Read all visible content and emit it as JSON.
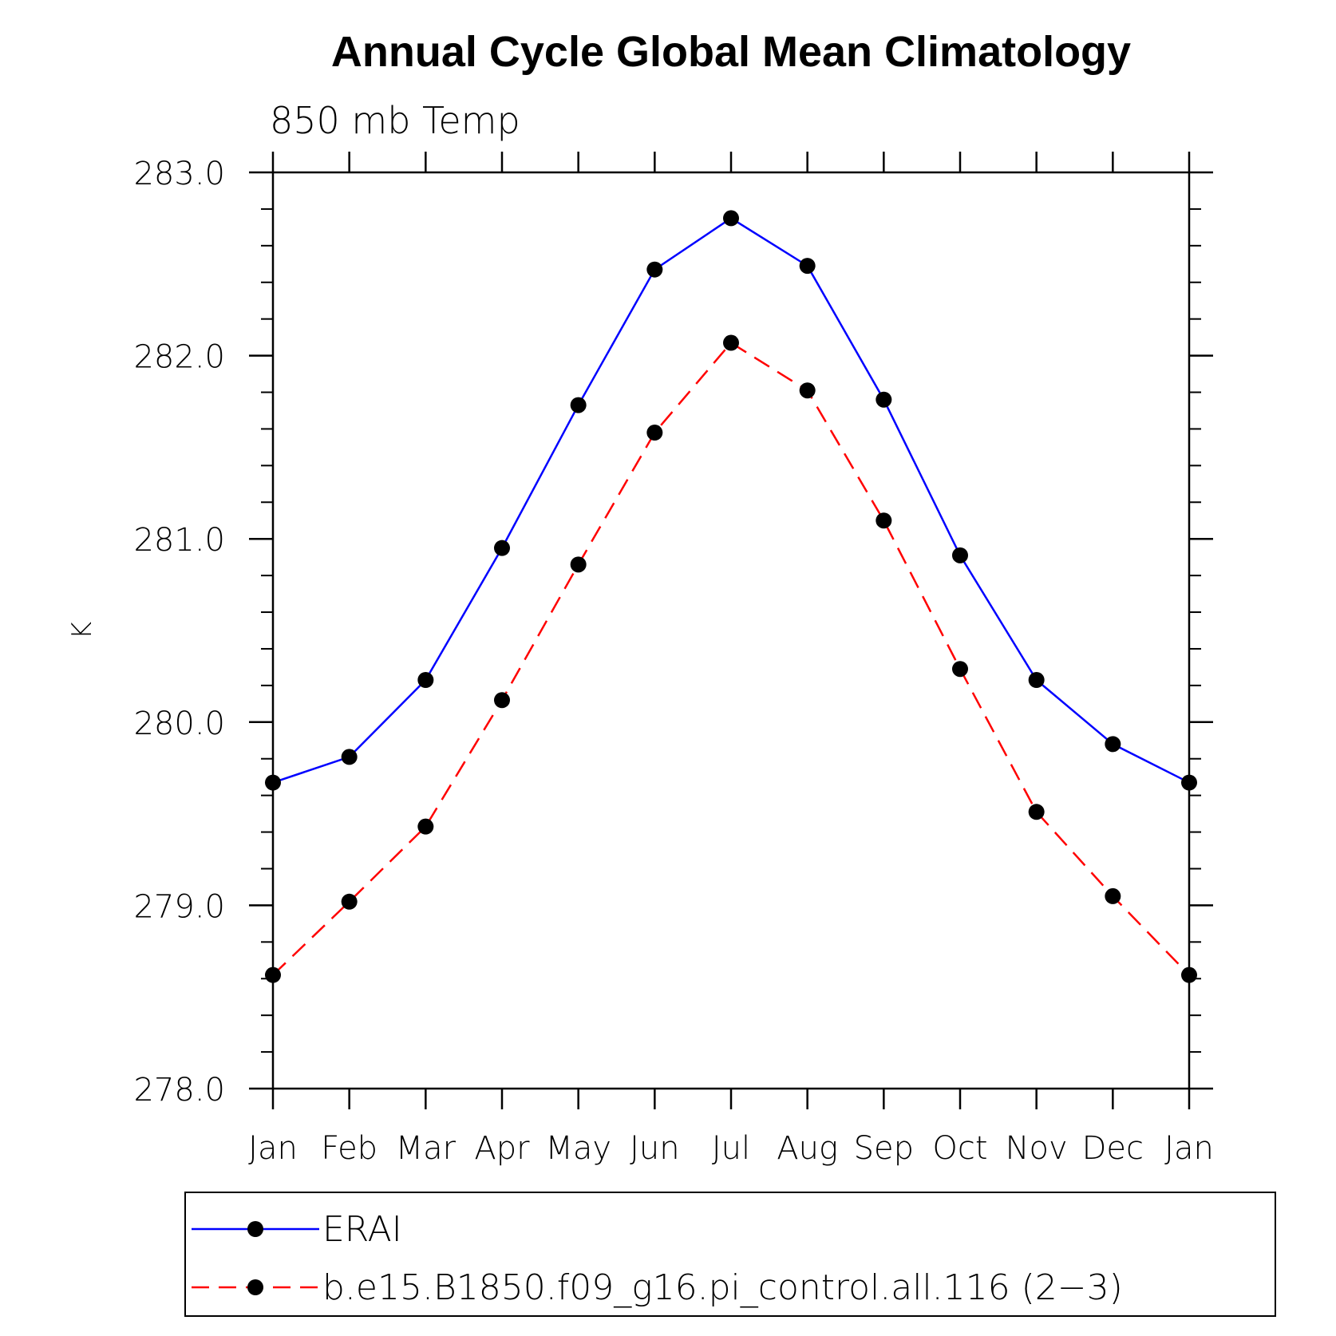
{
  "chart_data": {
    "type": "line",
    "title": "Annual Cycle Global Mean Climatology",
    "subtitle": "850 mb Temp",
    "xlabel": "",
    "ylabel": "K",
    "categories": [
      "Jan",
      "Feb",
      "Mar",
      "Apr",
      "May",
      "Jun",
      "Jul",
      "Aug",
      "Sep",
      "Oct",
      "Nov",
      "Dec",
      "Jan"
    ],
    "ylim": [
      278.0,
      283.0
    ],
    "yticks": [
      "278.0",
      "279.0",
      "280.0",
      "281.0",
      "282.0",
      "283.0"
    ],
    "y_minor_step": 0.2,
    "grid": false,
    "legend_position": "bottom",
    "series": [
      {
        "name": "ERAI",
        "color": "#0000ff",
        "dash": "solid",
        "marker": "filled-circle",
        "values": [
          279.67,
          279.81,
          280.23,
          280.95,
          281.73,
          282.47,
          282.75,
          282.49,
          281.76,
          280.91,
          280.23,
          279.88,
          279.67
        ]
      },
      {
        "name": "b.e15.B1850.f09_g16.pi_control.all.116 (2−3)",
        "color": "#ff0000",
        "dash": "dashed",
        "marker": "filled-circle",
        "values": [
          278.62,
          279.02,
          279.43,
          280.12,
          280.86,
          281.58,
          282.07,
          281.81,
          281.1,
          280.29,
          279.51,
          279.05,
          278.62
        ]
      }
    ]
  }
}
